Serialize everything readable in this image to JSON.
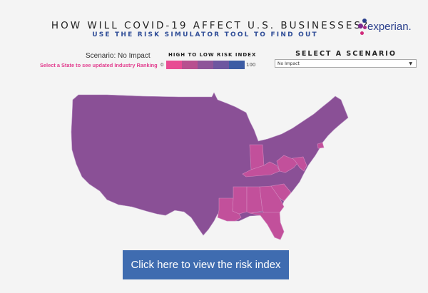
{
  "header": {
    "title": "HOW WILL COVID-19 AFFECT U.S. BUSINESSES?",
    "subtitle": "USE THE RISK SIMULATOR TOOL TO FIND OUT"
  },
  "logo": {
    "text": "experian."
  },
  "scenario": {
    "label": "Scenario: No Impact",
    "hint": "Select a State to see updated Industry Ranking"
  },
  "legend": {
    "title": "HIGH TO LOW RISK INDEX",
    "min": "0",
    "max": "100",
    "colors": [
      "#e84c93",
      "#b8508f",
      "#8e5599",
      "#6e56a0",
      "#3c5ca4"
    ]
  },
  "selector": {
    "title": "SELECT A SCENARIO",
    "value": "No Impact"
  },
  "map": {
    "base_color": "#8a5096",
    "highlight_color": "#c2509b",
    "highlighted_states": [
      "Indiana",
      "Kentucky",
      "West Virginia",
      "Maryland",
      "Delaware",
      "Connecticut",
      "Louisiana",
      "Mississippi",
      "Alabama",
      "Georgia",
      "South Carolina",
      "Florida"
    ]
  },
  "cta": {
    "label": "Click here to view the risk index"
  }
}
